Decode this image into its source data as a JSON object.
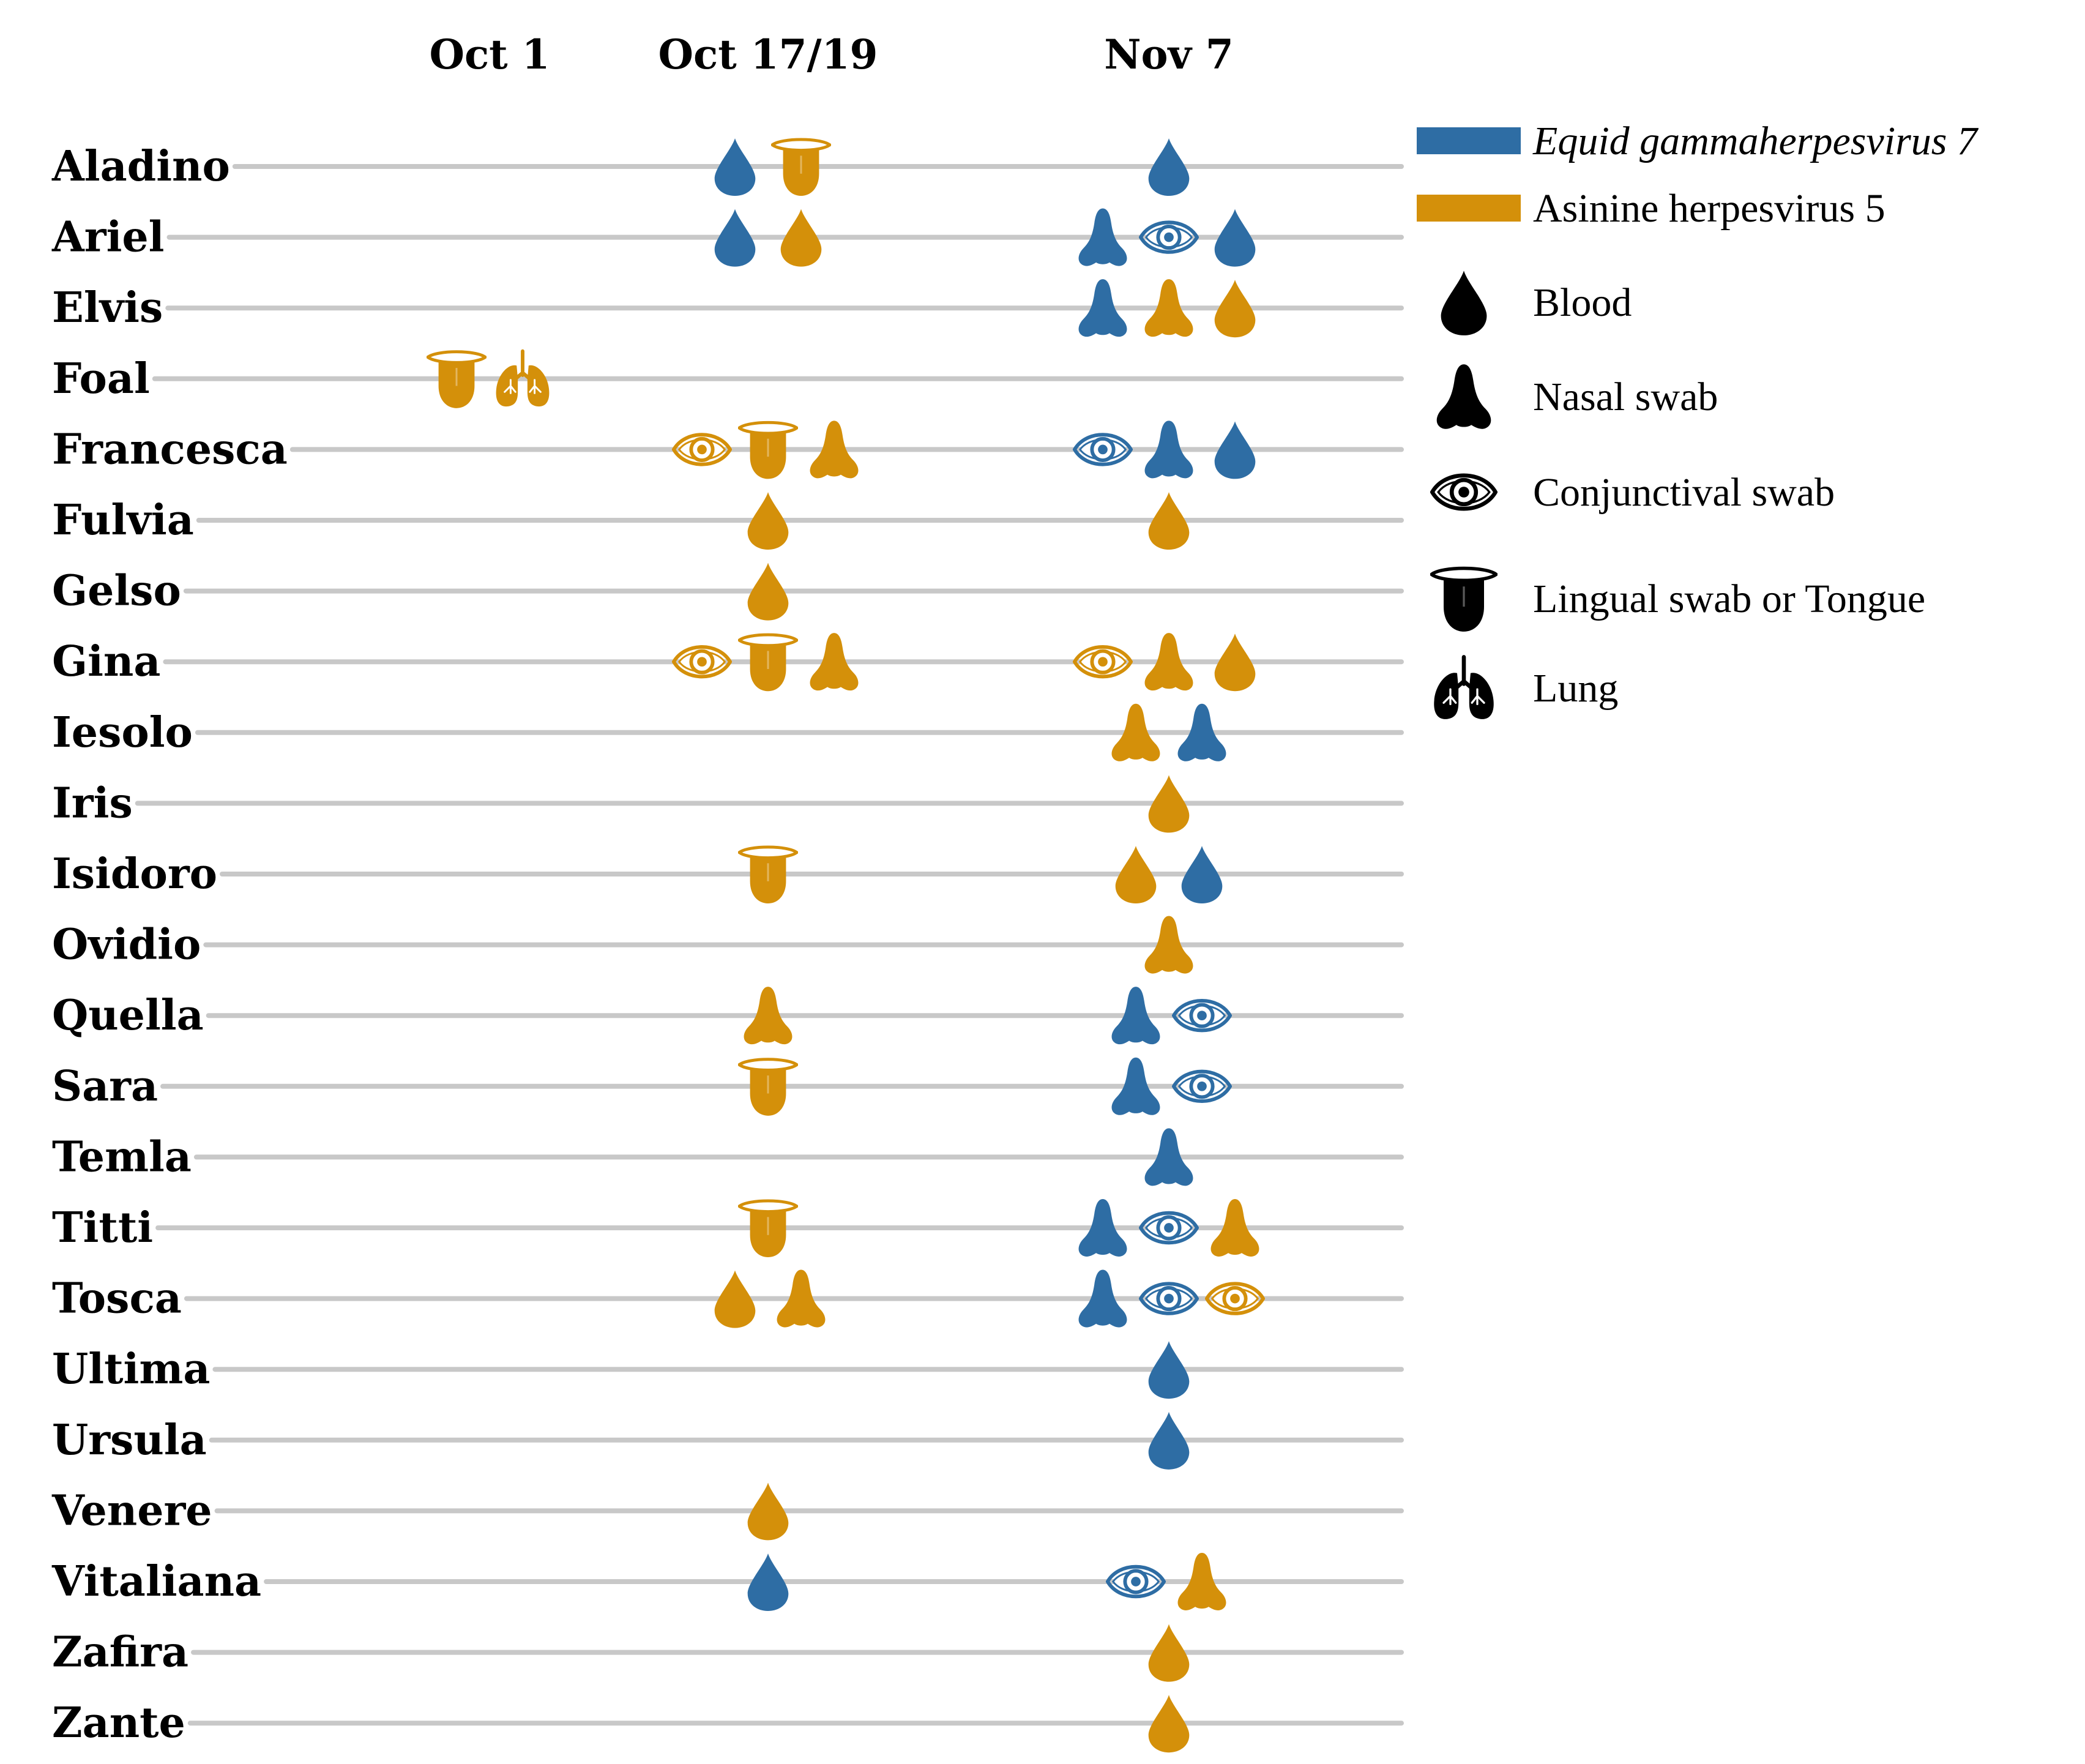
{
  "title": "",
  "dates": [
    {
      "key": "oct1",
      "label": "Oct 1"
    },
    {
      "key": "oct17",
      "label": "Oct 17/19"
    },
    {
      "key": "nov7",
      "label": "Nov 7"
    }
  ],
  "viruses": [
    {
      "key": "egh7",
      "label": "Equid gammaherpesvirus 7",
      "italic": true,
      "color": "#2e6da4"
    },
    {
      "key": "ahv5",
      "label": "Asinine herpesvirus 5",
      "italic": false,
      "color": "#d4900a"
    }
  ],
  "sample_types": [
    {
      "key": "blood",
      "label": "Blood",
      "icon": "blood-drop-icon"
    },
    {
      "key": "nasal",
      "label": "Nasal swab",
      "icon": "nose-icon"
    },
    {
      "key": "conj",
      "label": "Conjunctival swab",
      "icon": "eye-icon"
    },
    {
      "key": "tongue",
      "label": "Lingual swab or Tongue",
      "icon": "tongue-icon"
    },
    {
      "key": "lung",
      "label": "Lung",
      "icon": "lung-icon"
    }
  ],
  "animals": [
    {
      "name": "Aladino",
      "detections": {
        "oct17": [
          [
            "blood",
            "egh7"
          ],
          [
            "tongue",
            "ahv5"
          ]
        ],
        "nov7": [
          [
            "blood",
            "egh7"
          ]
        ]
      }
    },
    {
      "name": "Ariel",
      "detections": {
        "oct17": [
          [
            "blood",
            "egh7"
          ],
          [
            "blood",
            "ahv5"
          ]
        ],
        "nov7": [
          [
            "nasal",
            "egh7"
          ],
          [
            "conj",
            "egh7"
          ],
          [
            "blood",
            "egh7"
          ]
        ]
      }
    },
    {
      "name": "Elvis",
      "detections": {
        "nov7": [
          [
            "nasal",
            "egh7"
          ],
          [
            "nasal",
            "ahv5"
          ],
          [
            "blood",
            "ahv5"
          ]
        ]
      }
    },
    {
      "name": "Foal",
      "detections": {
        "oct1": [
          [
            "tongue",
            "ahv5"
          ],
          [
            "lung",
            "ahv5"
          ]
        ]
      }
    },
    {
      "name": "Francesca",
      "detections": {
        "oct17": [
          [
            "conj",
            "ahv5"
          ],
          [
            "tongue",
            "ahv5"
          ],
          [
            "nasal",
            "ahv5"
          ]
        ],
        "nov7": [
          [
            "conj",
            "egh7"
          ],
          [
            "nasal",
            "egh7"
          ],
          [
            "blood",
            "egh7"
          ]
        ]
      }
    },
    {
      "name": "Fulvia",
      "detections": {
        "oct17": [
          [
            "blood",
            "ahv5"
          ]
        ],
        "nov7": [
          [
            "blood",
            "ahv5"
          ]
        ]
      }
    },
    {
      "name": "Gelso",
      "detections": {
        "oct17": [
          [
            "blood",
            "ahv5"
          ]
        ]
      }
    },
    {
      "name": "Gina",
      "detections": {
        "oct17": [
          [
            "conj",
            "ahv5"
          ],
          [
            "tongue",
            "ahv5"
          ],
          [
            "nasal",
            "ahv5"
          ]
        ],
        "nov7": [
          [
            "conj",
            "ahv5"
          ],
          [
            "nasal",
            "ahv5"
          ],
          [
            "blood",
            "ahv5"
          ]
        ]
      }
    },
    {
      "name": "Iesolo",
      "detections": {
        "nov7": [
          [
            "nasal",
            "ahv5"
          ],
          [
            "nasal",
            "egh7"
          ]
        ]
      }
    },
    {
      "name": "Iris",
      "detections": {
        "nov7": [
          [
            "blood",
            "ahv5"
          ]
        ]
      }
    },
    {
      "name": "Isidoro",
      "detections": {
        "oct17": [
          [
            "tongue",
            "ahv5"
          ]
        ],
        "nov7": [
          [
            "blood",
            "ahv5"
          ],
          [
            "blood",
            "egh7"
          ]
        ]
      }
    },
    {
      "name": "Ovidio",
      "detections": {
        "nov7": [
          [
            "nasal",
            "ahv5"
          ]
        ]
      }
    },
    {
      "name": "Quella",
      "detections": {
        "oct17": [
          [
            "nasal",
            "ahv5"
          ]
        ],
        "nov7": [
          [
            "nasal",
            "egh7"
          ],
          [
            "conj",
            "egh7"
          ]
        ]
      }
    },
    {
      "name": "Sara",
      "detections": {
        "oct17": [
          [
            "tongue",
            "ahv5"
          ]
        ],
        "nov7": [
          [
            "nasal",
            "egh7"
          ],
          [
            "conj",
            "egh7"
          ]
        ]
      }
    },
    {
      "name": "Temla",
      "detections": {
        "nov7": [
          [
            "nasal",
            "egh7"
          ]
        ]
      }
    },
    {
      "name": "Titti",
      "detections": {
        "oct17": [
          [
            "tongue",
            "ahv5"
          ]
        ],
        "nov7": [
          [
            "nasal",
            "egh7"
          ],
          [
            "conj",
            "egh7"
          ],
          [
            "nasal",
            "ahv5"
          ]
        ]
      }
    },
    {
      "name": "Tosca",
      "detections": {
        "oct17": [
          [
            "blood",
            "ahv5"
          ],
          [
            "nasal",
            "ahv5"
          ]
        ],
        "nov7": [
          [
            "nasal",
            "egh7"
          ],
          [
            "conj",
            "egh7"
          ],
          [
            "conj",
            "ahv5"
          ]
        ]
      }
    },
    {
      "name": "Ultima",
      "detections": {
        "nov7": [
          [
            "blood",
            "egh7"
          ]
        ]
      }
    },
    {
      "name": "Ursula",
      "detections": {
        "nov7": [
          [
            "blood",
            "egh7"
          ]
        ]
      }
    },
    {
      "name": "Venere",
      "detections": {
        "oct17": [
          [
            "blood",
            "ahv5"
          ]
        ]
      }
    },
    {
      "name": "Vitaliana",
      "detections": {
        "oct17": [
          [
            "blood",
            "egh7"
          ]
        ],
        "nov7": [
          [
            "conj",
            "egh7"
          ],
          [
            "nasal",
            "ahv5"
          ]
        ]
      }
    },
    {
      "name": "Zafira",
      "detections": {
        "nov7": [
          [
            "blood",
            "ahv5"
          ]
        ]
      }
    },
    {
      "name": "Zante",
      "detections": {
        "nov7": [
          [
            "blood",
            "ahv5"
          ]
        ]
      }
    }
  ]
}
